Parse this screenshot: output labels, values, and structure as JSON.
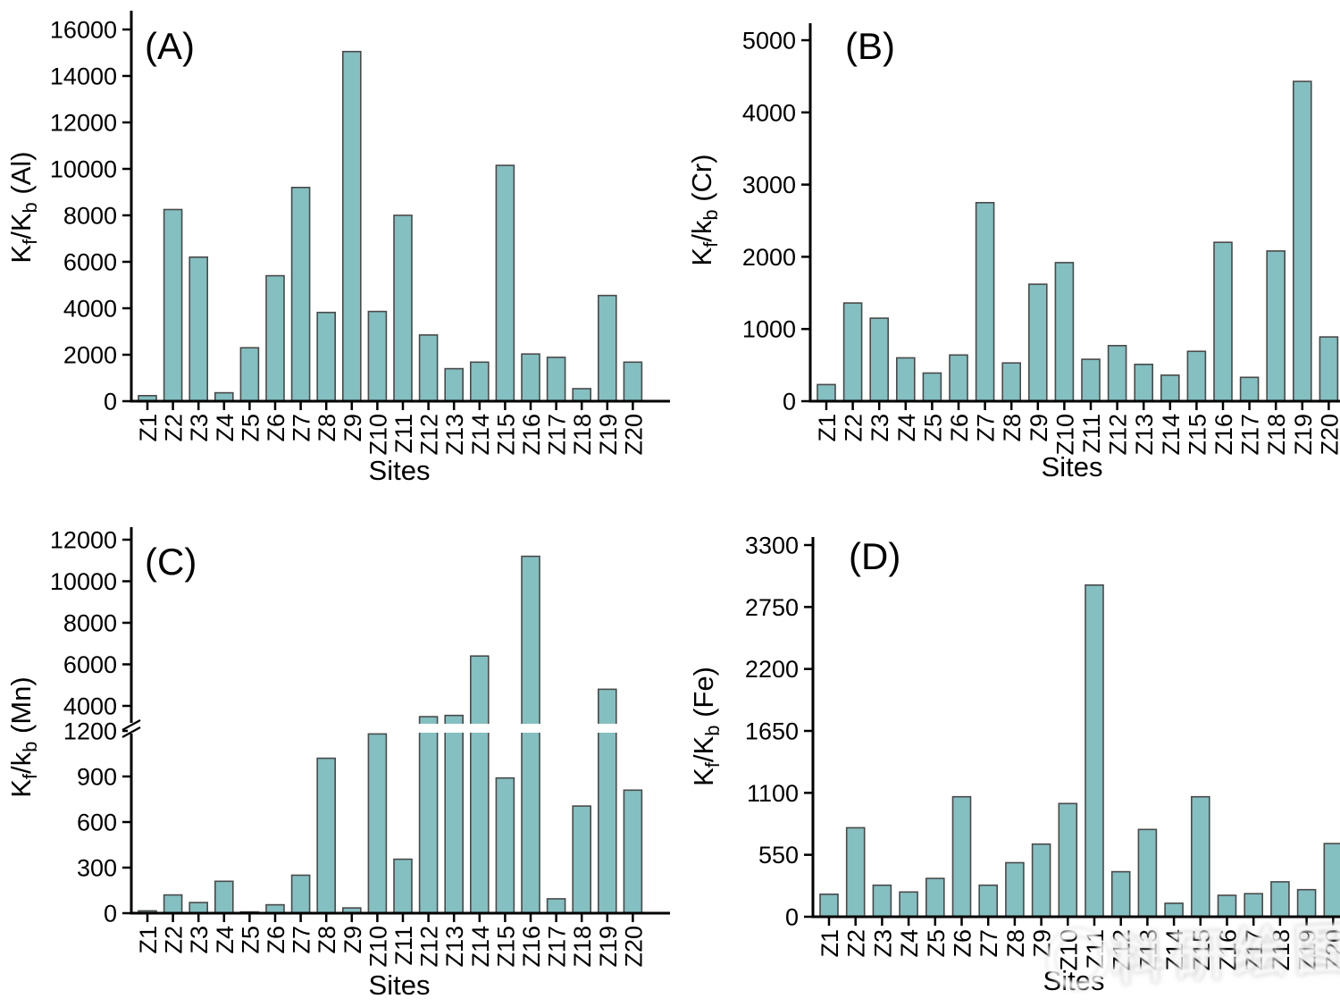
{
  "figure": {
    "sites_axis_label": "Sites",
    "bar_fill": "#84bfc1",
    "bar_stroke": "#4a4a4a",
    "axis_color": "#000000"
  },
  "watermark": {
    "glyphs": "科研绘图"
  },
  "chart_data": [
    {
      "type": "bar",
      "panel_label": "(A)",
      "element": "Al",
      "ylabel_parts": {
        "k1": "K",
        "sub1": "f",
        "k2": "/K",
        "sub2": "b",
        "unit": " (Al)"
      },
      "xlabel": "Sites",
      "categories": [
        "Z1",
        "Z2",
        "Z3",
        "Z4",
        "Z5",
        "Z6",
        "Z7",
        "Z8",
        "Z9",
        "Z10",
        "Z11",
        "Z12",
        "Z13",
        "Z14",
        "Z15",
        "Z16",
        "Z17",
        "Z18",
        "Z19",
        "Z20"
      ],
      "values": [
        240,
        8250,
        6200,
        360,
        2300,
        5400,
        9200,
        3820,
        15050,
        3860,
        8000,
        2850,
        1400,
        1680,
        10150,
        2030,
        1890,
        540,
        4550,
        1680
      ],
      "yticks": [
        0,
        2000,
        4000,
        6000,
        8000,
        10000,
        12000,
        14000,
        16000
      ],
      "ylim": [
        0,
        16000
      ],
      "grid": false,
      "legend": null
    },
    {
      "type": "bar",
      "panel_label": "(B)",
      "element": "Cr",
      "ylabel_parts": {
        "k1": "K",
        "sub1": "f",
        "k2": "/k",
        "sub2": "b",
        "unit": " (Cr)"
      },
      "xlabel": "Sites",
      "categories": [
        "Z1",
        "Z2",
        "Z3",
        "Z4",
        "Z5",
        "Z6",
        "Z7",
        "Z8",
        "Z9",
        "Z10",
        "Z11",
        "Z12",
        "Z13",
        "Z14",
        "Z15",
        "Z16",
        "Z17",
        "Z18",
        "Z19",
        "Z20"
      ],
      "values": [
        230,
        1360,
        1150,
        600,
        390,
        640,
        2750,
        530,
        1620,
        1920,
        580,
        770,
        510,
        360,
        690,
        2200,
        330,
        2080,
        4430,
        890
      ],
      "yticks": [
        0,
        1000,
        2000,
        3000,
        4000,
        5000
      ],
      "ylim": [
        0,
        5000
      ],
      "grid": false,
      "legend": null
    },
    {
      "type": "bar",
      "panel_label": "(C)",
      "element": "Mn",
      "ylabel_parts": {
        "k1": "K",
        "sub1": "f",
        "k2": "/k",
        "sub2": "b",
        "unit": " (Mn)"
      },
      "xlabel": "Sites",
      "categories": [
        "Z1",
        "Z2",
        "Z3",
        "Z4",
        "Z5",
        "Z6",
        "Z7",
        "Z8",
        "Z9",
        "Z10",
        "Z11",
        "Z12",
        "Z13",
        "Z14",
        "Z15",
        "Z16",
        "Z17",
        "Z18",
        "Z19",
        "Z20"
      ],
      "values": [
        15,
        120,
        70,
        210,
        8,
        55,
        250,
        1020,
        35,
        1180,
        355,
        2300,
        2500,
        6400,
        890,
        11200,
        95,
        705,
        4800,
        810
      ],
      "axis_break": {
        "break_value": 1200,
        "lower_ticks": [
          0,
          300,
          600,
          900,
          1200
        ],
        "upper_ticks": [
          4000,
          6000,
          8000,
          10000,
          12000
        ]
      },
      "ylim": [
        0,
        12000
      ],
      "grid": false,
      "legend": null
    },
    {
      "type": "bar",
      "panel_label": "(D)",
      "element": "Fe",
      "ylabel_parts": {
        "k1": "K",
        "sub1": "f",
        "k2": "/K",
        "sub2": "b",
        "unit": " (Fe)"
      },
      "xlabel": "Sites",
      "categories": [
        "Z1",
        "Z2",
        "Z3",
        "Z4",
        "Z5",
        "Z6",
        "Z7",
        "Z8",
        "Z9",
        "Z10",
        "Z11",
        "Z12",
        "Z13",
        "Z14",
        "Z15",
        "Z16",
        "Z17",
        "Z18",
        "Z19",
        "Z20"
      ],
      "values": [
        200,
        790,
        280,
        220,
        340,
        1065,
        280,
        480,
        645,
        1005,
        2945,
        400,
        775,
        120,
        1065,
        190,
        205,
        310,
        240,
        650
      ],
      "yticks": [
        0,
        550,
        1100,
        1650,
        2200,
        2750,
        3300
      ],
      "ylim": [
        0,
        3300
      ],
      "grid": false,
      "legend": null
    }
  ]
}
